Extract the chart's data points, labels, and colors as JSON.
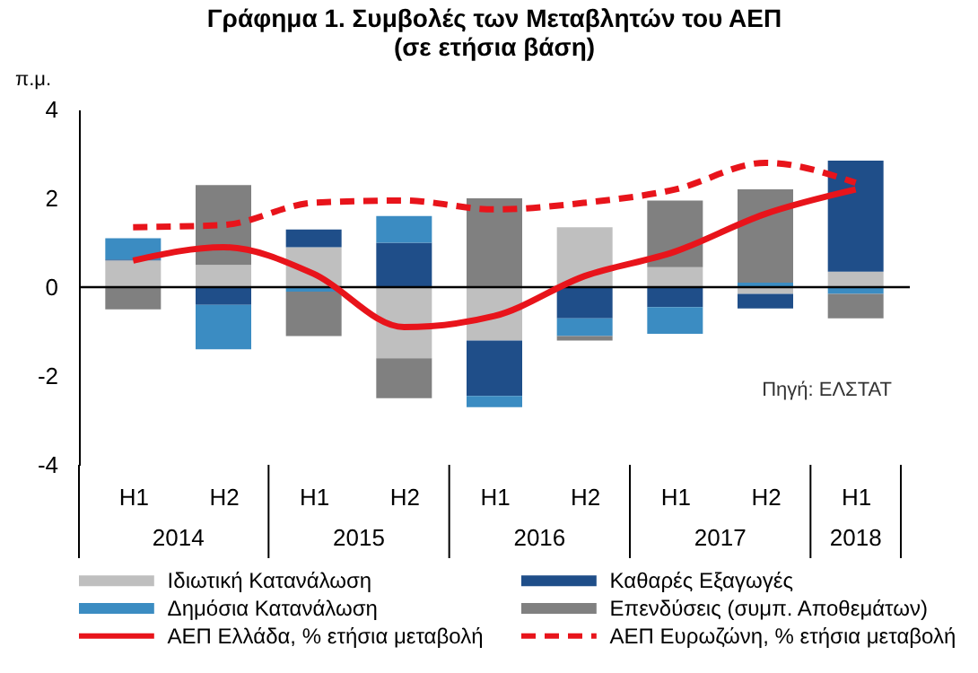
{
  "chart_data": {
    "type": "bar",
    "stacked": true,
    "title": "Γράφημα 1. Συμβολές των Μεταβλητών του ΑΕΠ",
    "subtitle": "(σε ετήσια βάση)",
    "ylabel": "π.μ.",
    "categories": [
      "H1",
      "H2",
      "H1",
      "H2",
      "H1",
      "H2",
      "H1",
      "H2",
      "H1"
    ],
    "series": [
      {
        "name": "Ιδιωτική Κατανάλωση",
        "color": "#bfbfbf",
        "values": [
          0.6,
          0.5,
          0.9,
          -1.6,
          -1.2,
          1.35,
          0.45,
          -0.15,
          0.35
        ]
      },
      {
        "name": "Καθαρές Εξαγωγές",
        "color": "#1f4e89",
        "values": [
          0.02,
          -0.4,
          0.4,
          1.0,
          -1.25,
          -0.7,
          -0.45,
          -0.33,
          2.5
        ]
      },
      {
        "name": "Δημόσια Κατανάλωση",
        "color": "#3b8cc2",
        "values": [
          0.48,
          -1.0,
          -0.1,
          0.6,
          -0.25,
          -0.4,
          -0.6,
          0.1,
          -0.15
        ]
      },
      {
        "name": "Επενδύσεις (συμπ. Αποθεμάτων)",
        "color": "#808080",
        "values": [
          -0.5,
          1.8,
          -1.0,
          -0.9,
          2.0,
          -0.1,
          1.5,
          2.1,
          -0.55
        ]
      },
      {
        "name": "ΑΕΠ Ελλάδα, % ετήσια μεταβολή",
        "type": "line",
        "line_style": "solid",
        "color": "#e8141b",
        "values": [
          0.6,
          0.9,
          0.3,
          -0.9,
          -0.65,
          0.25,
          0.8,
          1.65,
          2.2
        ]
      },
      {
        "name": "ΑΕΠ Ευρωζώνη, % ετήσια μεταβολή",
        "type": "line",
        "line_style": "dashed",
        "color": "#e8141b",
        "values": [
          1.35,
          1.4,
          1.9,
          1.95,
          1.75,
          1.9,
          2.2,
          2.8,
          2.35
        ]
      }
    ],
    "ylim": [
      -4,
      4
    ],
    "yticks": [
      -4,
      -2,
      0,
      2,
      4
    ],
    "grid": false,
    "legend": "bottom",
    "marker": "none",
    "ref_lines": [
      {
        "axis": "y",
        "value": 0
      }
    ],
    "annotations": [
      "2014",
      "2015",
      "2016",
      "2017",
      "2018",
      "Πηγή: ΕΛΣΤΑΤ"
    ]
  }
}
